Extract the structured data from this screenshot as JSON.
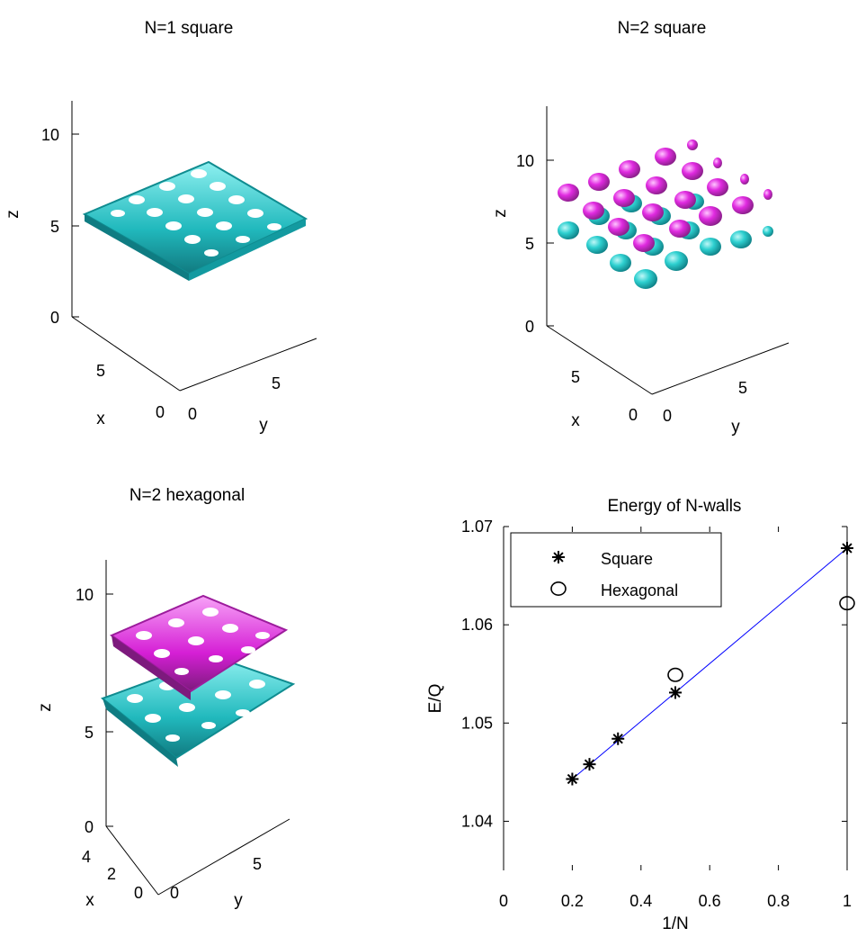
{
  "panels": [
    {
      "title": "N=1 square",
      "z_ticks": [
        "10",
        "5",
        "0"
      ],
      "x_ticks": [
        "5",
        "0"
      ],
      "y_ticks": [
        "0",
        "5"
      ],
      "xlabel": "x",
      "ylabel": "y",
      "zlabel": "z",
      "colors": {
        "lower": "#2ec4c4"
      }
    },
    {
      "title": "N=2 square",
      "z_ticks": [
        "10",
        "5",
        "0"
      ],
      "x_ticks": [
        "5",
        "0"
      ],
      "y_ticks": [
        "0",
        "5"
      ],
      "xlabel": "x",
      "ylabel": "y",
      "zlabel": "z",
      "colors": {
        "lower": "#2ee0e0",
        "upper": "#d61fd6"
      }
    },
    {
      "title": "N=2 hexagonal",
      "z_ticks": [
        "10",
        "5",
        "0"
      ],
      "x_ticks": [
        "4",
        "2",
        "0"
      ],
      "y_ticks": [
        "0",
        "5"
      ],
      "xlabel": "x",
      "ylabel": "y",
      "zlabel": "z",
      "colors": {
        "lower": "#2ee0e0",
        "upper": "#d61fd6"
      }
    }
  ],
  "chart_data": {
    "type": "scatter",
    "title": "Energy of N-walls",
    "xlabel": "1/N",
    "ylabel": "E/Q",
    "xlim": [
      0,
      1
    ],
    "ylim": [
      1.035,
      1.07
    ],
    "x_ticks": [
      "0",
      "0.2",
      "0.4",
      "0.6",
      "0.8",
      "1"
    ],
    "y_ticks": [
      "1.04",
      "1.05",
      "1.06",
      "1.07"
    ],
    "legend_position": "top-left",
    "series": [
      {
        "name": "Square",
        "marker": "asterisk",
        "x": [
          0.2,
          0.25,
          0.333,
          0.5,
          1.0
        ],
        "y": [
          1.0443,
          1.0458,
          1.0484,
          1.0531,
          1.0678
        ]
      },
      {
        "name": "Hexagonal",
        "marker": "circle",
        "x": [
          0.5,
          1.0
        ],
        "y": [
          1.0549,
          1.0622
        ]
      }
    ],
    "fit_line": {
      "color": "#0000ff",
      "x": [
        0.2,
        1.0
      ],
      "y": [
        1.0443,
        1.0678
      ]
    }
  }
}
